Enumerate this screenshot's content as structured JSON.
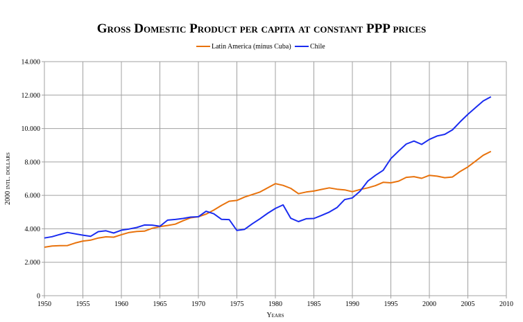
{
  "chart_data": {
    "type": "line",
    "title": "Gross Domestic Product per capita at constant PPP prices",
    "xlabel": "Years",
    "ylabel": "2000 intl. dollars",
    "xlim": [
      1950,
      2010
    ],
    "ylim": [
      0,
      14000
    ],
    "xticks": [
      "1950",
      "1955",
      "1960",
      "1965",
      "1970",
      "1975",
      "1980",
      "1985",
      "1990",
      "1995",
      "2000",
      "2005",
      "2010"
    ],
    "yticks": [
      "0",
      "2.000",
      "4.000",
      "6.000",
      "8.000",
      "10.000",
      "12.000",
      "14.000"
    ],
    "grid": true,
    "legend_position": "top-center",
    "x": [
      1950,
      1951,
      1952,
      1953,
      1954,
      1955,
      1956,
      1957,
      1958,
      1959,
      1960,
      1961,
      1962,
      1963,
      1964,
      1965,
      1966,
      1967,
      1968,
      1969,
      1970,
      1971,
      1972,
      1973,
      1974,
      1975,
      1976,
      1977,
      1978,
      1979,
      1980,
      1981,
      1982,
      1983,
      1984,
      1985,
      1986,
      1987,
      1988,
      1989,
      1990,
      1991,
      1992,
      1993,
      1994,
      1995,
      1996,
      1997,
      1998,
      1999,
      2000,
      2001,
      2002,
      2003,
      2004,
      2005,
      2006,
      2007,
      2008
    ],
    "series": [
      {
        "name": "Latin America (minus Cuba)",
        "color": "#e8720c",
        "values": [
          2900,
          2970,
          2990,
          3000,
          3150,
          3270,
          3320,
          3450,
          3520,
          3500,
          3650,
          3780,
          3840,
          3860,
          4030,
          4130,
          4200,
          4280,
          4480,
          4660,
          4720,
          4880,
          5120,
          5400,
          5650,
          5700,
          5900,
          6050,
          6200,
          6450,
          6700,
          6600,
          6420,
          6100,
          6200,
          6260,
          6360,
          6450,
          6370,
          6330,
          6220,
          6350,
          6450,
          6580,
          6780,
          6750,
          6850,
          7080,
          7120,
          7020,
          7200,
          7150,
          7060,
          7100,
          7430,
          7700,
          8050,
          8400,
          8630
        ]
      },
      {
        "name": "Chile",
        "color": "#1a2cf0",
        "values": [
          3450,
          3530,
          3660,
          3780,
          3700,
          3620,
          3550,
          3830,
          3880,
          3750,
          3920,
          3990,
          4080,
          4230,
          4220,
          4150,
          4520,
          4560,
          4620,
          4700,
          4720,
          5050,
          4900,
          4570,
          4550,
          3900,
          3970,
          4300,
          4600,
          4930,
          5220,
          5430,
          4630,
          4430,
          4600,
          4620,
          4800,
          5000,
          5270,
          5750,
          5850,
          6250,
          6850,
          7200,
          7500,
          8200,
          8650,
          9070,
          9250,
          9050,
          9350,
          9550,
          9650,
          9920,
          10400,
          10850,
          11250,
          11650,
          11900
        ]
      }
    ]
  }
}
